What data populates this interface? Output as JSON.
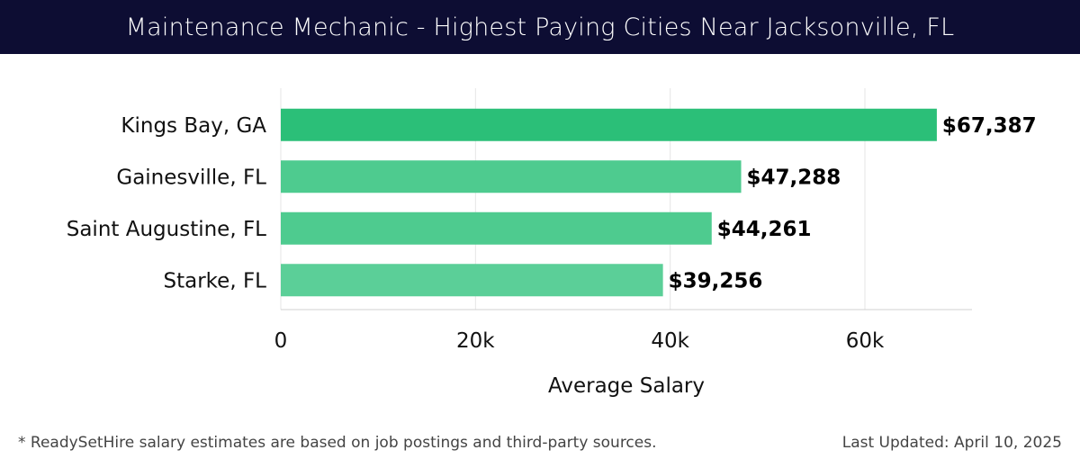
{
  "header": {
    "title": "Maintenance Mechanic - Highest Paying Cities Near Jacksonville, FL"
  },
  "footer": {
    "note": "* ReadySetHire salary estimates are based on job postings and third-party sources.",
    "last_updated": "Last Updated: April 10, 2025"
  },
  "chart_data": {
    "type": "bar",
    "orientation": "horizontal",
    "categories": [
      "Kings Bay, GA",
      "Gainesville, FL",
      "Saint Augustine, FL",
      "Starke, FL"
    ],
    "values": [
      67387,
      47288,
      44261,
      39256
    ],
    "value_labels": [
      "$67,387",
      "$47,288",
      "$44,261",
      "$39,256"
    ],
    "xlabel": "Average Salary",
    "xlim": [
      0,
      71000
    ],
    "xticks": [
      0,
      20000,
      40000,
      60000
    ],
    "xtick_labels": [
      "0",
      "20k",
      "40k",
      "60k"
    ],
    "grid": true,
    "bar_colors": [
      "#2bbf78",
      "#4ecb8f",
      "#4ecb8f",
      "#5bcf98"
    ]
  }
}
